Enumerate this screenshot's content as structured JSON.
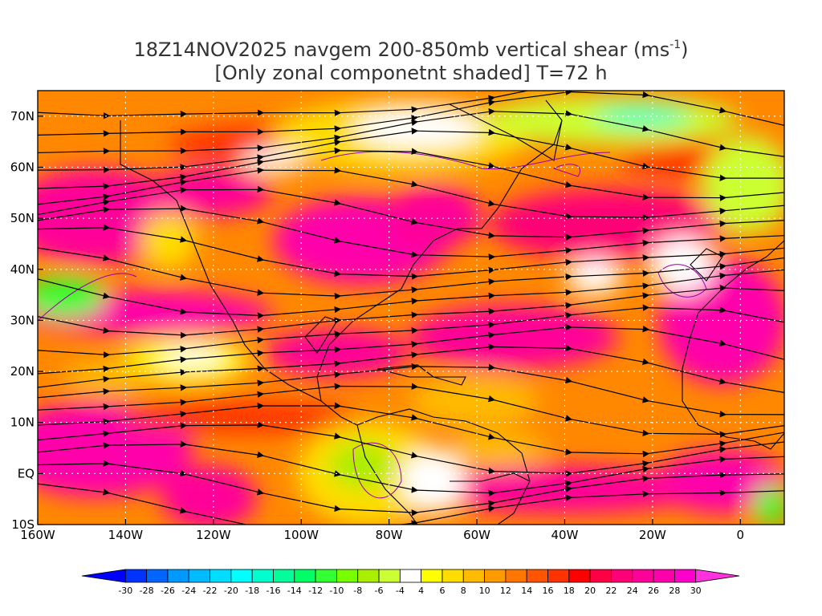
{
  "title": {
    "line1": "18Z14NOV2025 navgem 200-850mb vertical shear (ms",
    "line1_sup": "-1",
    "line1_end": ")",
    "line2": "[Only zonal componetnt shaded] T=72 h"
  },
  "map": {
    "lat_labels": [
      "70N",
      "60N",
      "50N",
      "40N",
      "30N",
      "20N",
      "10N",
      "EQ",
      "10S"
    ],
    "lat_values": [
      70,
      60,
      50,
      40,
      30,
      20,
      10,
      0,
      -10
    ],
    "lon_labels": [
      "160W",
      "140W",
      "120W",
      "100W",
      "80W",
      "60W",
      "40W",
      "20W",
      "0"
    ],
    "lon_values": [
      -160,
      -140,
      -120,
      -100,
      -80,
      -60,
      -40,
      -20,
      0
    ],
    "extent": {
      "lon_min": -160,
      "lon_max": 10,
      "lat_min": -10,
      "lat_max": 75
    },
    "grid": "dotted"
  },
  "colorbar": {
    "labels": [
      "-30",
      "-28",
      "-26",
      "-24",
      "-22",
      "-20",
      "-18",
      "-16",
      "-14",
      "-12",
      "-10",
      "-8",
      "-6",
      "-4",
      "4",
      "6",
      "8",
      "10",
      "12",
      "14",
      "16",
      "18",
      "20",
      "22",
      "24",
      "26",
      "28",
      "30"
    ],
    "colors": [
      "#0000ff",
      "#0033ff",
      "#0066ff",
      "#0099ff",
      "#00bbff",
      "#00ddff",
      "#00ffff",
      "#00ffcc",
      "#00ff99",
      "#00ff66",
      "#33ff33",
      "#77ff00",
      "#aaee00",
      "#ccff33",
      "#ffffff",
      "#ffff00",
      "#ffdd00",
      "#ffbb00",
      "#ff9900",
      "#ff7700",
      "#ff5500",
      "#ff3300",
      "#ff0000",
      "#ff0044",
      "#ff0077",
      "#ff0099",
      "#ff00aa",
      "#ff00cc",
      "#ff33dd"
    ]
  },
  "chart_data": {
    "type": "heatmap",
    "variable": "vertical shear",
    "units": "ms-1",
    "levels": [
      -30,
      -28,
      -26,
      -24,
      -22,
      -20,
      -18,
      -16,
      -14,
      -12,
      -10,
      -8,
      -6,
      -4,
      4,
      6,
      8,
      10,
      12,
      14,
      16,
      18,
      20,
      22,
      24,
      26,
      28,
      30
    ],
    "xlim": [
      -160,
      10
    ],
    "ylim": [
      -10,
      75
    ],
    "grid": true,
    "legend": "bottom"
  }
}
